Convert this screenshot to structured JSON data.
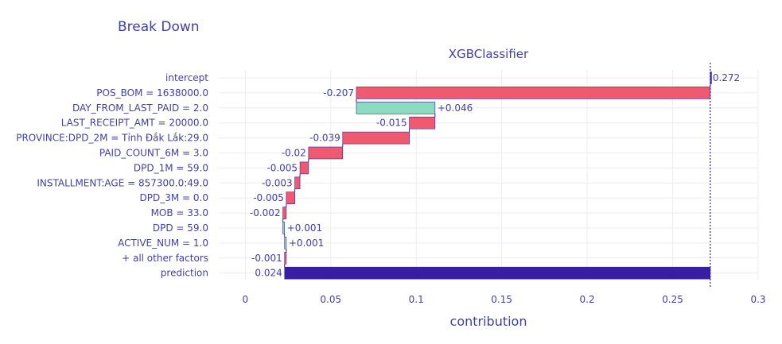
{
  "chart_data": {
    "type": "bar",
    "title": "Break Down",
    "subtitle": "XGBClassifier",
    "xlabel": "contribution",
    "ylabel": "",
    "xlim": [
      -0.0155,
      0.3
    ],
    "xticks": [
      0,
      0.05,
      0.1,
      0.15,
      0.2,
      0.25,
      0.3
    ],
    "xtick_labels": [
      "0",
      "0.05",
      "0.1",
      "0.15",
      "0.2",
      "0.25",
      "0.3"
    ],
    "grid": true,
    "colors": {
      "positive": "#8bdcbe",
      "negative": "#f05a71",
      "prediction": "#371ea3",
      "text": "#3f3fa8",
      "grid": "#ececf2"
    },
    "reference_line": 0.272,
    "rows": [
      {
        "variable": "intercept",
        "start": 0.272,
        "end": 0.272,
        "label": "0.272",
        "sign": "intercept"
      },
      {
        "variable": "POS_BOM = 1638000.0",
        "start": 0.272,
        "end": 0.065,
        "label": "-0.207",
        "sign": "negative"
      },
      {
        "variable": "DAY_FROM_LAST_PAID = 2.0",
        "start": 0.065,
        "end": 0.111,
        "label": "+0.046",
        "sign": "positive"
      },
      {
        "variable": "LAST_RECEIPT_AMT = 20000.0",
        "start": 0.111,
        "end": 0.096,
        "label": "-0.015",
        "sign": "negative"
      },
      {
        "variable": "PROVINCE:DPD_2M = Tỉnh Đắk Lắk:29.0",
        "start": 0.096,
        "end": 0.057,
        "label": "-0.039",
        "sign": "negative"
      },
      {
        "variable": "PAID_COUNT_6M = 3.0",
        "start": 0.057,
        "end": 0.037,
        "label": "-0.02",
        "sign": "negative"
      },
      {
        "variable": "DPD_1M = 59.0",
        "start": 0.037,
        "end": 0.032,
        "label": "-0.005",
        "sign": "negative"
      },
      {
        "variable": "INSTALLMENT:AGE = 857300.0:49.0",
        "start": 0.032,
        "end": 0.029,
        "label": "-0.003",
        "sign": "negative"
      },
      {
        "variable": "DPD_3M = 0.0",
        "start": 0.029,
        "end": 0.024,
        "label": "-0.005",
        "sign": "negative"
      },
      {
        "variable": "MOB = 33.0",
        "start": 0.024,
        "end": 0.022,
        "label": "-0.002",
        "sign": "negative"
      },
      {
        "variable": "DPD = 59.0",
        "start": 0.022,
        "end": 0.023,
        "label": "+0.001",
        "sign": "positive"
      },
      {
        "variable": "ACTIVE_NUM = 1.0",
        "start": 0.023,
        "end": 0.024,
        "label": "+0.001",
        "sign": "positive"
      },
      {
        "variable": "+ all other factors",
        "start": 0.024,
        "end": 0.023,
        "label": "-0.001",
        "sign": "negative"
      },
      {
        "variable": "prediction",
        "start": 0.023,
        "end": 0.272,
        "label": "0.024",
        "sign": "prediction"
      }
    ]
  }
}
